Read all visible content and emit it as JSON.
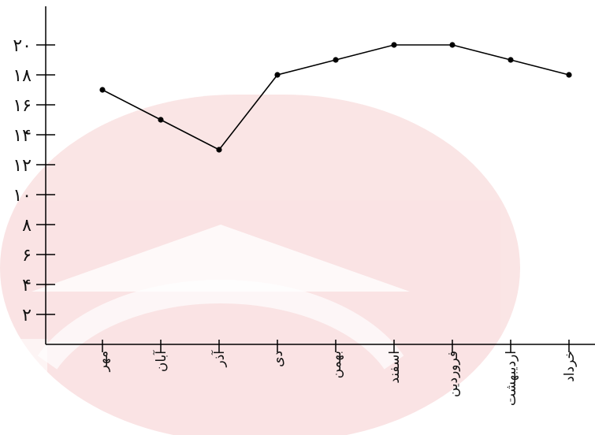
{
  "chart_data": {
    "type": "line",
    "categories": [
      "مهر",
      "آبان",
      "آذر",
      "دی",
      "بهمن",
      "اسفند",
      "فروردین",
      "اردیبهشت",
      "خرداد"
    ],
    "values": [
      17,
      15,
      13,
      18,
      19,
      20,
      20,
      19,
      18
    ],
    "yticks": [
      2,
      4,
      6,
      8,
      10,
      12,
      14,
      16,
      18,
      20
    ],
    "ytick_labels": [
      "۲",
      "۴",
      "۶",
      "۸",
      "۱۰",
      "۱۲",
      "۱۴",
      "۱۶",
      "۱۸",
      "۲۰"
    ],
    "ylim": [
      0,
      22
    ],
    "grid": false,
    "colors": {
      "line": "#000000",
      "watermark": "#d8262a"
    }
  }
}
